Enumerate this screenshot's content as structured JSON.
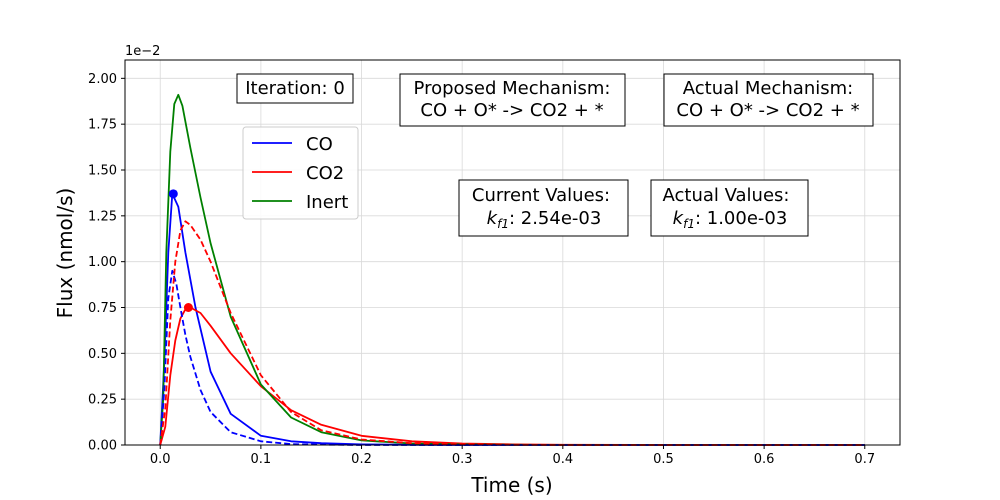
{
  "chart_data": {
    "type": "line",
    "xlabel": "Time (s)",
    "ylabel": "Flux (nmol/s)",
    "y_offset_label": "1e−2",
    "xlim": [
      -0.035,
      0.735
    ],
    "ylim": [
      0,
      2.1
    ],
    "x_ticks": [
      "0.0",
      "0.1",
      "0.2",
      "0.3",
      "0.4",
      "0.5",
      "0.6",
      "0.7"
    ],
    "y_ticks": [
      "0.00",
      "0.25",
      "0.50",
      "0.75",
      "1.00",
      "1.25",
      "1.50",
      "1.75",
      "2.00"
    ],
    "grid": true,
    "legend_placement": "upper-left",
    "series": [
      {
        "name": "CO",
        "color": "#0000ff",
        "style": "solid",
        "x": [
          0,
          0.004,
          0.008,
          0.012,
          0.018,
          0.025,
          0.035,
          0.05,
          0.07,
          0.1,
          0.13,
          0.16,
          0.2,
          0.25,
          0.3,
          0.7
        ],
        "y": [
          0,
          0.45,
          1.05,
          1.37,
          1.3,
          1.05,
          0.75,
          0.4,
          0.17,
          0.05,
          0.02,
          0.01,
          0.003,
          0.001,
          0,
          0
        ]
      },
      {
        "name": "CO2",
        "color": "#ff0000",
        "style": "solid",
        "x": [
          0,
          0.005,
          0.01,
          0.015,
          0.02,
          0.025,
          0.03,
          0.04,
          0.05,
          0.07,
          0.1,
          0.13,
          0.16,
          0.2,
          0.25,
          0.3,
          0.35,
          0.4,
          0.5,
          0.7
        ],
        "y": [
          0,
          0.1,
          0.38,
          0.57,
          0.69,
          0.74,
          0.75,
          0.72,
          0.65,
          0.5,
          0.32,
          0.19,
          0.11,
          0.05,
          0.02,
          0.008,
          0.003,
          0.001,
          0,
          0
        ]
      },
      {
        "name": "Inert",
        "color": "#008000",
        "style": "solid",
        "x": [
          0,
          0.003,
          0.006,
          0.01,
          0.014,
          0.018,
          0.022,
          0.03,
          0.04,
          0.05,
          0.07,
          0.1,
          0.13,
          0.16,
          0.2,
          0.25,
          0.3,
          0.35,
          0.4,
          0.5,
          0.7
        ],
        "y": [
          0,
          0.25,
          1.05,
          1.6,
          1.86,
          1.91,
          1.85,
          1.62,
          1.35,
          1.1,
          0.7,
          0.33,
          0.15,
          0.07,
          0.025,
          0.008,
          0.003,
          0.001,
          0,
          0,
          0
        ]
      },
      {
        "name": "",
        "color": "#0000ff",
        "style": "dashed",
        "x": [
          0,
          0.004,
          0.008,
          0.012,
          0.016,
          0.02,
          0.025,
          0.03,
          0.04,
          0.05,
          0.07,
          0.1,
          0.13,
          0.16,
          0.2,
          0.7
        ],
        "y": [
          0,
          0.3,
          0.8,
          0.95,
          0.88,
          0.75,
          0.6,
          0.48,
          0.3,
          0.18,
          0.07,
          0.02,
          0.005,
          0.002,
          0,
          0
        ]
      },
      {
        "name": "",
        "color": "#ff0000",
        "style": "dashed",
        "x": [
          0,
          0.005,
          0.01,
          0.015,
          0.02,
          0.025,
          0.03,
          0.04,
          0.05,
          0.07,
          0.1,
          0.13,
          0.16,
          0.2,
          0.25,
          0.3,
          0.35,
          0.4,
          0.5,
          0.7
        ],
        "y": [
          0,
          0.2,
          0.68,
          1.0,
          1.17,
          1.22,
          1.2,
          1.12,
          1.0,
          0.72,
          0.38,
          0.18,
          0.08,
          0.03,
          0.01,
          0.004,
          0.001,
          0,
          0,
          0
        ]
      }
    ],
    "markers": [
      {
        "series": "CO",
        "x": 0.013,
        "y": 1.37,
        "color": "#0000ff"
      },
      {
        "series": "CO2",
        "x": 0.028,
        "y": 0.75,
        "color": "#ff0000"
      }
    ],
    "annotations": {
      "iteration": "Iteration: 0",
      "proposed_title": "Proposed Mechanism:",
      "proposed_eq": "CO + O* -> CO2 + *",
      "actual_title": "Actual Mechanism:",
      "actual_eq": "CO + O* -> CO2 + *",
      "current_title": "Current Values:",
      "current_value": ": 2.54e-03",
      "actual_values_title": "Actual Values:",
      "actual_value": ": 1.00e-03",
      "k_symbol": "k",
      "k_sub": "f1"
    }
  }
}
